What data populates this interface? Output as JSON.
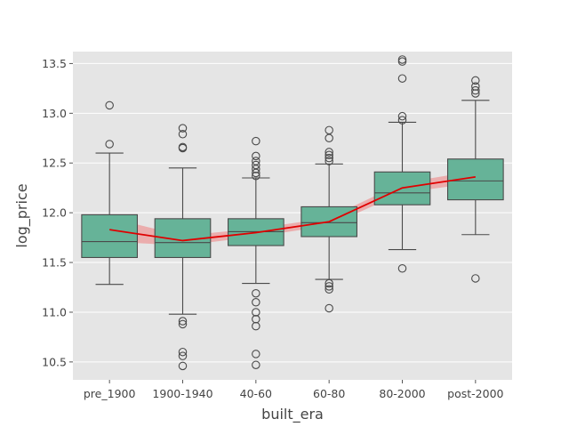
{
  "chart_data": {
    "type": "box",
    "xlabel": "built_era",
    "ylabel": "log_price",
    "categories": [
      "pre_1900",
      "1900-1940",
      "40-60",
      "60-80",
      "80-2000",
      "post-2000"
    ],
    "ylim": [
      10.32,
      13.62
    ],
    "yticks": [
      10.5,
      11.0,
      11.5,
      12.0,
      12.5,
      13.0,
      13.5
    ],
    "ytick_labels": [
      "10.5",
      "11.0",
      "11.5",
      "12.0",
      "12.5",
      "13.0",
      "13.5"
    ],
    "grid": true,
    "boxes": [
      {
        "category": "pre_1900",
        "whisker_low": 11.28,
        "q1": 11.55,
        "median": 11.71,
        "q3": 11.98,
        "whisker_high": 12.6,
        "outliers": [
          12.69,
          13.08
        ]
      },
      {
        "category": "1900-1940",
        "whisker_low": 10.98,
        "q1": 11.55,
        "median": 11.7,
        "q3": 11.94,
        "whisker_high": 12.45,
        "outliers": [
          10.91,
          10.88,
          10.6,
          10.56,
          10.46,
          12.65,
          12.66,
          12.79,
          12.85
        ]
      },
      {
        "category": "40-60",
        "whisker_low": 11.29,
        "q1": 11.67,
        "median": 11.81,
        "q3": 11.94,
        "whisker_high": 12.35,
        "outliers": [
          11.19,
          11.1,
          11.0,
          10.93,
          10.86,
          10.58,
          10.47,
          12.37,
          12.4,
          12.44,
          12.48,
          12.52,
          12.57,
          12.72
        ]
      },
      {
        "category": "60-80",
        "whisker_low": 11.33,
        "q1": 11.76,
        "median": 11.9,
        "q3": 12.06,
        "whisker_high": 12.49,
        "outliers": [
          11.29,
          11.26,
          11.23,
          11.04,
          12.52,
          12.55,
          12.58,
          12.61,
          12.75,
          12.83
        ]
      },
      {
        "category": "80-2000",
        "whisker_low": 11.63,
        "q1": 12.08,
        "median": 12.2,
        "q3": 12.41,
        "whisker_high": 12.91,
        "outliers": [
          11.44,
          12.93,
          12.97,
          13.35,
          13.52,
          13.54
        ]
      },
      {
        "category": "post-2000",
        "whisker_low": 11.78,
        "q1": 12.13,
        "median": 12.32,
        "q3": 12.54,
        "whisker_high": 13.13,
        "outliers": [
          11.34,
          13.2,
          13.23,
          13.27,
          13.33
        ]
      }
    ],
    "trend_line": {
      "values": [
        11.83,
        11.72,
        11.8,
        11.91,
        12.25,
        12.36
      ],
      "ci_low": [
        11.71,
        11.67,
        11.76,
        11.87,
        12.2,
        12.3
      ],
      "ci_high": [
        11.95,
        11.77,
        11.84,
        11.95,
        12.3,
        12.42
      ]
    },
    "colors": {
      "background": "#e5e5e5",
      "grid": "#ffffff",
      "box_fill": "#66b398",
      "box_edge": "#4a4a4a",
      "trend": "#e00000",
      "ci_fill": "#f08080"
    }
  }
}
